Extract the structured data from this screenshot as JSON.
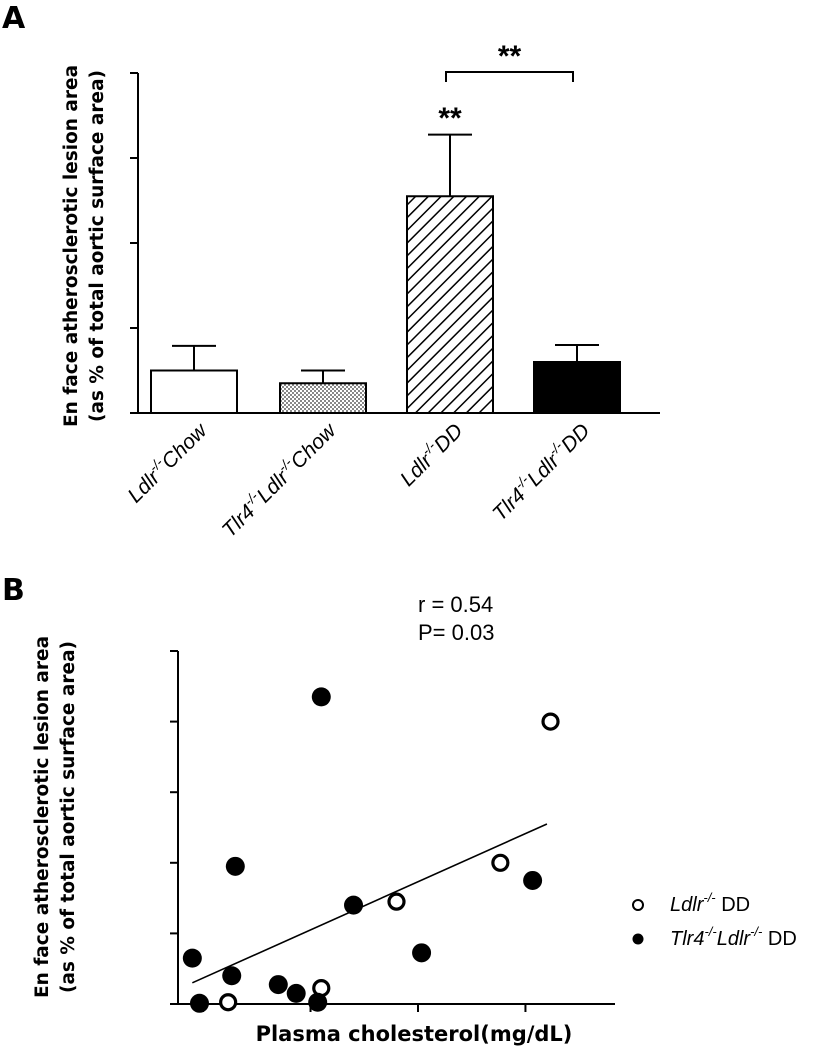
{
  "chart_data": [
    {
      "panel": "A",
      "type": "bar",
      "ylabel_line1": "En face atherosclerotic lesion area",
      "ylabel_line2": "(as % of total aortic surface area)",
      "ylim": [
        0,
        8
      ],
      "yticks": [
        "0",
        "2",
        "4",
        "6",
        "8"
      ],
      "categories": [
        {
          "gene": "Ldlr",
          "sup": "-/-",
          "label": "Chow"
        },
        {
          "gene": "Tlr4",
          "sup": "-/-",
          "gene2": "Ldlr",
          "sup2": "-/-",
          "label": "Chow"
        },
        {
          "gene": "Ldlr",
          "sup": "-/-",
          "label": "DD"
        },
        {
          "gene": "Tlr4",
          "sup": "-/-",
          "gene2": "Ldlr",
          "sup2": "-/-",
          "label": "DD"
        }
      ],
      "values": [
        1.0,
        0.7,
        5.1,
        1.2
      ],
      "errors": [
        0.58,
        0.3,
        1.45,
        0.4
      ],
      "fills": [
        "white",
        "dotted",
        "hatched",
        "black"
      ],
      "significance": {
        "bar_mark": "**",
        "bracket_mark": "**"
      }
    },
    {
      "panel": "B",
      "type": "scatter",
      "ylabel_line1": "En face atherosclerotic lesion area",
      "ylabel_line2": "(as % of total aortic surface area)",
      "xlabel": "Plasma cholesterol(mg/dL)",
      "xlim": [
        333,
        455
      ],
      "ylim": [
        0,
        10
      ],
      "xticks": [
        340,
        370,
        400,
        430
      ],
      "yticks": [
        "0.0",
        "2.0",
        "4.0",
        "6.0",
        "8.0",
        "10.0"
      ],
      "stats": {
        "r": "r = 0.54",
        "p": "P= 0.03"
      },
      "regression": {
        "x": [
          337,
          436
        ],
        "y": [
          0.6,
          5.1
        ]
      },
      "legend": [
        {
          "marker": "open",
          "gene": "Ldlr",
          "sup": "-/-",
          "label": " DD"
        },
        {
          "marker": "filled",
          "gene": "Tlr4",
          "sup": "-/-",
          "gene2": "Ldlr",
          "sup2": "-/-",
          "label": " DD"
        }
      ],
      "series": [
        {
          "marker": "open",
          "points": [
            [
              347,
              0.05
            ],
            [
              373,
              0.45
            ],
            [
              394,
              2.9
            ],
            [
              423,
              4.0
            ],
            [
              437,
              8.0
            ]
          ]
        },
        {
          "marker": "filled",
          "points": [
            [
              337,
              1.3
            ],
            [
              339,
              0.02
            ],
            [
              348,
              0.8
            ],
            [
              349,
              3.9
            ],
            [
              361,
              0.55
            ],
            [
              366,
              0.3
            ],
            [
              372,
              0.05
            ],
            [
              373,
              8.7
            ],
            [
              382,
              2.8
            ],
            [
              401,
              1.45
            ],
            [
              432,
              3.5
            ]
          ]
        }
      ]
    }
  ]
}
